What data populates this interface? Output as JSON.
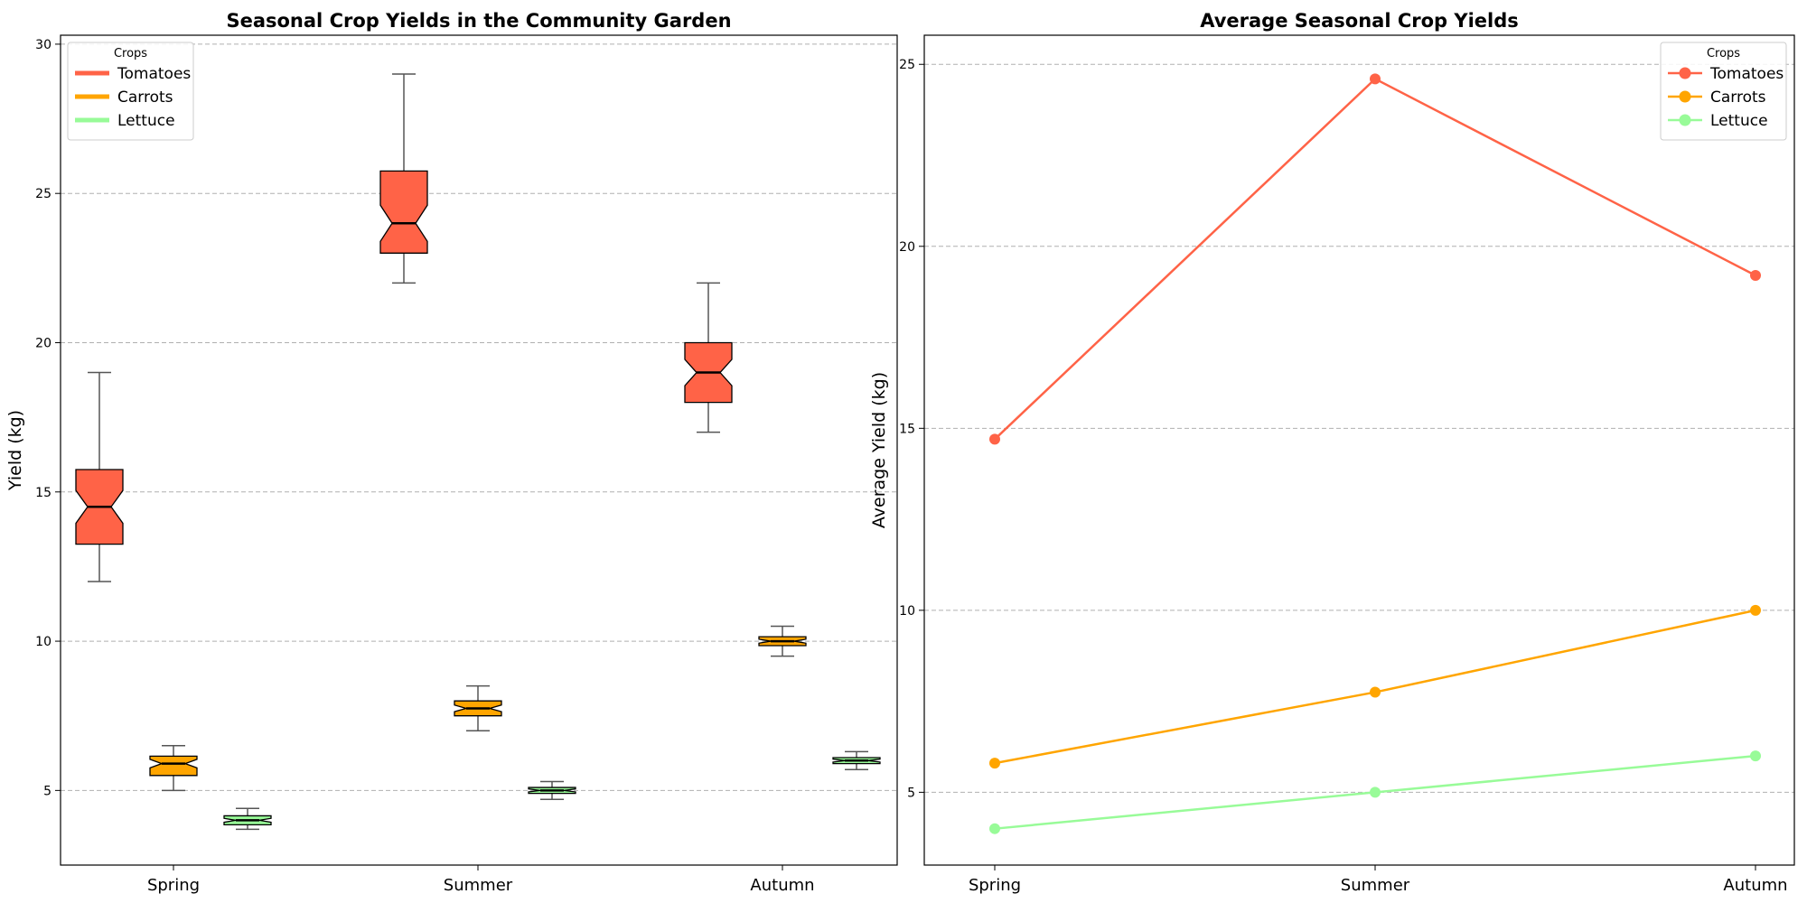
{
  "chart_data": [
    {
      "type": "box",
      "title": "Seasonal Crop Yields in the Community Garden",
      "xlabel": "",
      "ylabel": "Yield (kg)",
      "ylim": [
        2.5,
        30.3
      ],
      "yticks": [
        5,
        10,
        15,
        20,
        25,
        30
      ],
      "categories": [
        "Spring",
        "Summer",
        "Autumn"
      ],
      "grid": "y-dashed",
      "notched": true,
      "legend": {
        "title": "Crops",
        "placement": "top-left"
      },
      "series": [
        {
          "name": "Tomatoes",
          "color": "#FF6347",
          "boxes": [
            {
              "whisker_low": 12,
              "q1": 13.25,
              "median": 14.5,
              "q3": 15.75,
              "whisker_high": 19
            },
            {
              "whisker_low": 22,
              "q1": 23,
              "median": 24,
              "q3": 25.75,
              "whisker_high": 29
            },
            {
              "whisker_low": 17,
              "q1": 18,
              "median": 19,
              "q3": 20,
              "whisker_high": 22
            }
          ]
        },
        {
          "name": "Carrots",
          "color": "#FFA500",
          "boxes": [
            {
              "whisker_low": 5,
              "q1": 5.5,
              "median": 5.9,
              "q3": 6.15,
              "whisker_high": 6.5
            },
            {
              "whisker_low": 7,
              "q1": 7.5,
              "median": 7.75,
              "q3": 8.0,
              "whisker_high": 8.5
            },
            {
              "whisker_low": 9.5,
              "q1": 9.85,
              "median": 10,
              "q3": 10.15,
              "whisker_high": 10.5
            }
          ]
        },
        {
          "name": "Lettuce",
          "color": "#98FB98",
          "boxes": [
            {
              "whisker_low": 3.7,
              "q1": 3.85,
              "median": 4.0,
              "q3": 4.15,
              "whisker_high": 4.4
            },
            {
              "whisker_low": 4.7,
              "q1": 4.9,
              "median": 5.0,
              "q3": 5.1,
              "whisker_high": 5.3
            },
            {
              "whisker_low": 5.7,
              "q1": 5.9,
              "median": 6.0,
              "q3": 6.1,
              "whisker_high": 6.3
            }
          ]
        }
      ]
    },
    {
      "type": "line",
      "title": "Average Seasonal Crop Yields",
      "xlabel": "",
      "ylabel": "Average Yield (kg)",
      "ylim": [
        3.0,
        25.8
      ],
      "yticks": [
        5,
        10,
        15,
        20,
        25
      ],
      "categories": [
        "Spring",
        "Summer",
        "Autumn"
      ],
      "grid": "y-dashed",
      "legend": {
        "title": "Crops",
        "placement": "top-right"
      },
      "series": [
        {
          "name": "Tomatoes",
          "color": "#FF6347",
          "values": [
            14.7,
            24.6,
            19.2
          ]
        },
        {
          "name": "Carrots",
          "color": "#FFA500",
          "values": [
            5.8,
            7.75,
            10.0
          ]
        },
        {
          "name": "Lettuce",
          "color": "#98FB98",
          "values": [
            4.0,
            5.0,
            6.0
          ]
        }
      ]
    }
  ]
}
